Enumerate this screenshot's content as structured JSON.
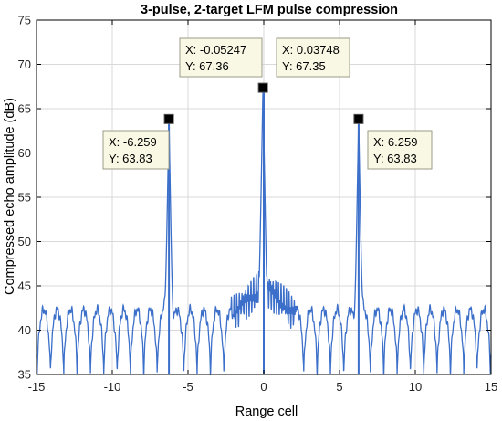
{
  "chart_data": {
    "type": "line",
    "title": "3-pulse, 2-target LFM pulse compression",
    "xlabel": "Range cell",
    "ylabel": "Compressed echo amplitude (dB)",
    "xlim": [
      -15,
      15
    ],
    "ylim": [
      35,
      75
    ],
    "xticks": [
      -15,
      -10,
      -5,
      0,
      5,
      10,
      15
    ],
    "yticks": [
      35,
      40,
      45,
      50,
      55,
      60,
      65,
      70,
      75
    ],
    "grid": true,
    "series_color": "#3b6fc9",
    "peaks": [
      {
        "x": -6.259,
        "y": 63.83
      },
      {
        "x": -0.05247,
        "y": 67.36
      },
      {
        "x": 0.03748,
        "y": 67.35
      },
      {
        "x": 6.259,
        "y": 63.83
      }
    ],
    "datatips": [
      {
        "x_text": "X: -6.259",
        "y_text": "Y: 63.83",
        "x": -6.259,
        "y": 63.83
      },
      {
        "x_text": "X: -0.05247",
        "y_text": "Y: 67.36",
        "x": -0.05247,
        "y": 67.36
      },
      {
        "x_text": "X: 0.03748",
        "y_text": "Y: 67.35",
        "x": 0.03748,
        "y": 67.35
      },
      {
        "x_text": "X: 6.259",
        "y_text": "Y: 63.83",
        "x": 6.259,
        "y": 63.83
      }
    ]
  }
}
